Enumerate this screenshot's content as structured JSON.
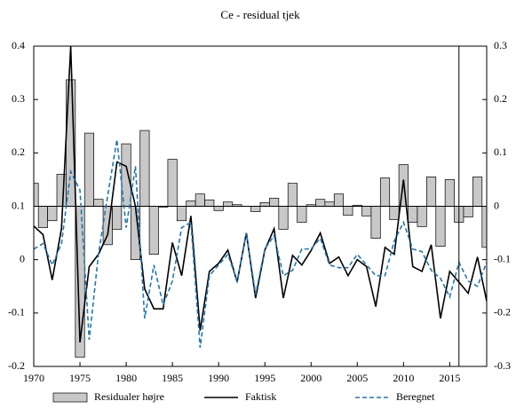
{
  "chart_data": {
    "type": "line",
    "title": "Ce - residual tjek",
    "x": [
      1970,
      1971,
      1972,
      1973,
      1974,
      1975,
      1976,
      1977,
      1978,
      1979,
      1980,
      1981,
      1982,
      1983,
      1984,
      1985,
      1986,
      1987,
      1988,
      1989,
      1990,
      1991,
      1992,
      1993,
      1994,
      1995,
      1996,
      1997,
      1998,
      1999,
      2000,
      2001,
      2002,
      2003,
      2004,
      2005,
      2006,
      2007,
      2008,
      2009,
      2010,
      2011,
      2012,
      2013,
      2014,
      2015,
      2016,
      2017,
      2018,
      2019
    ],
    "series": [
      {
        "name": "Residualer højre",
        "kind": "bar",
        "axis": "y2",
        "color": "#c8c8c8",
        "values": [
          0.043,
          -0.04,
          -0.027,
          0.06,
          0.237,
          -0.283,
          0.137,
          0.013,
          -0.072,
          -0.043,
          0.117,
          -0.1,
          0.142,
          -0.09,
          -0.002,
          0.088,
          -0.027,
          0.01,
          0.023,
          0.012,
          -0.008,
          0.008,
          0.003,
          0.0,
          -0.01,
          0.007,
          0.015,
          -0.043,
          0.043,
          -0.03,
          0.003,
          0.013,
          0.008,
          0.023,
          -0.017,
          0.002,
          -0.018,
          -0.06,
          0.053,
          -0.025,
          0.078,
          -0.03,
          -0.038,
          0.055,
          -0.075,
          0.05,
          -0.03,
          -0.02,
          0.055,
          -0.077
        ]
      },
      {
        "name": "Faktisk",
        "kind": "line",
        "color": "#000000",
        "values": [
          0.063,
          0.047,
          -0.038,
          0.058,
          0.4,
          -0.155,
          -0.013,
          0.01,
          0.047,
          0.183,
          0.175,
          0.1,
          -0.055,
          -0.092,
          -0.092,
          0.032,
          -0.03,
          0.082,
          -0.133,
          -0.022,
          -0.007,
          0.018,
          -0.042,
          0.05,
          -0.072,
          0.018,
          0.058,
          -0.072,
          0.008,
          -0.01,
          0.017,
          0.05,
          -0.007,
          0.005,
          -0.03,
          0.0,
          -0.013,
          -0.088,
          0.023,
          0.01,
          0.15,
          -0.013,
          -0.022,
          0.028,
          -0.11,
          -0.022,
          -0.042,
          -0.063,
          0.005,
          -0.078
        ]
      },
      {
        "name": "Beregnet",
        "kind": "dashed",
        "color": "#1f77b4",
        "values": [
          0.02,
          0.03,
          -0.01,
          0.03,
          0.165,
          0.13,
          -0.15,
          0.01,
          0.12,
          0.225,
          0.06,
          0.175,
          -0.11,
          -0.01,
          -0.085,
          -0.04,
          0.06,
          0.07,
          -0.165,
          -0.03,
          -0.01,
          0.01,
          -0.04,
          0.05,
          -0.065,
          0.02,
          0.045,
          -0.03,
          -0.02,
          0.02,
          0.02,
          0.04,
          -0.01,
          -0.015,
          -0.015,
          0.01,
          -0.01,
          -0.03,
          -0.03,
          0.035,
          0.07,
          0.02,
          0.015,
          -0.02,
          -0.035,
          -0.07,
          -0.005,
          -0.04,
          -0.05,
          -0.005
        ]
      }
    ],
    "xlim": [
      1970,
      2019
    ],
    "xticks": [
      1970,
      1975,
      1980,
      1985,
      1990,
      1995,
      2000,
      2005,
      2010,
      2015
    ],
    "ylim": [
      -0.2,
      0.4
    ],
    "yticks": [
      -0.2,
      -0.1,
      0,
      0.1,
      0.2,
      0.3,
      0.4
    ],
    "y2lim": [
      -0.3,
      0.3
    ],
    "y2ticks": [
      -0.3,
      -0.2,
      -0.1,
      0,
      0.1,
      0.2,
      0.3
    ],
    "vline_x": 2016,
    "legend": "bottom"
  }
}
